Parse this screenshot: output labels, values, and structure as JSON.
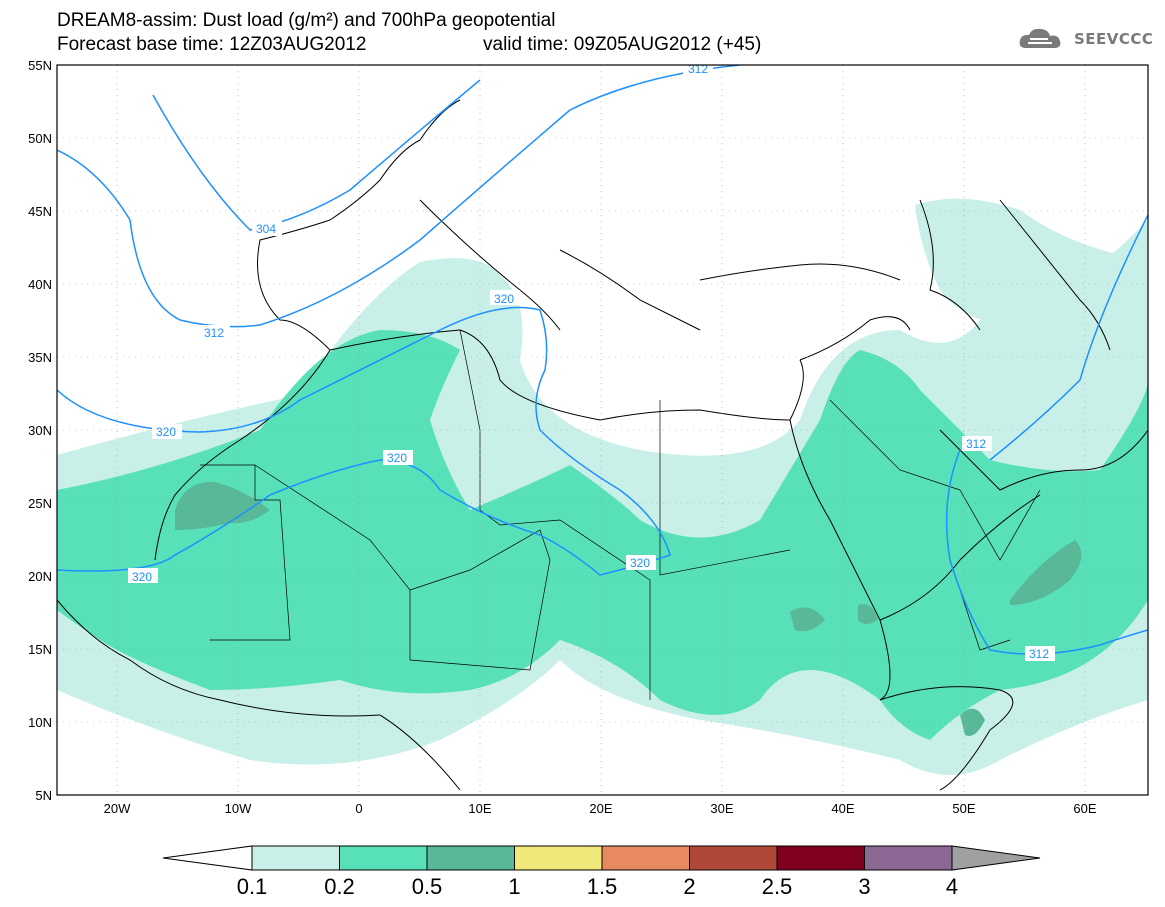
{
  "title": {
    "line1": "DREAM8-assim: Dust load (g/m²) and 700hPa geopotential",
    "line2": "Forecast base time: 12Z03AUG2012",
    "valid": "valid time: 09Z05AUG2012 (+45)"
  },
  "logo": {
    "text": "SEEVCCC",
    "icon": "cloud-logo-icon"
  },
  "map": {
    "extent": {
      "lon_min": -25,
      "lon_max": 65,
      "lat_min": 5,
      "lat_max": 55
    },
    "lat_labels": [
      "55N",
      "50N",
      "45N",
      "40N",
      "35N",
      "30N",
      "25N",
      "20N",
      "15N",
      "10N",
      "5N"
    ],
    "lon_labels": [
      "20W",
      "10W",
      "0",
      "10E",
      "20E",
      "30E",
      "40E",
      "50E",
      "60E"
    ],
    "contour_labels": [
      "312",
      "304",
      "312",
      "320",
      "320",
      "320",
      "320",
      "312",
      "312"
    ],
    "colors": {
      "c01": "#c8f0e8",
      "c02": "#58e0b8",
      "c05": "#58b898",
      "contour": "#1e90ff"
    }
  },
  "colorbar": {
    "labels": [
      "0.1",
      "0.2",
      "0.5",
      "1",
      "1.5",
      "2",
      "2.5",
      "3",
      "4"
    ],
    "colors": [
      "#c8f0e8",
      "#58e0b8",
      "#58b898",
      "#f0e878",
      "#e88a60",
      "#b04838",
      "#800020",
      "#8c6894"
    ],
    "under": "#ffffff",
    "over": "#a0a0a0"
  }
}
